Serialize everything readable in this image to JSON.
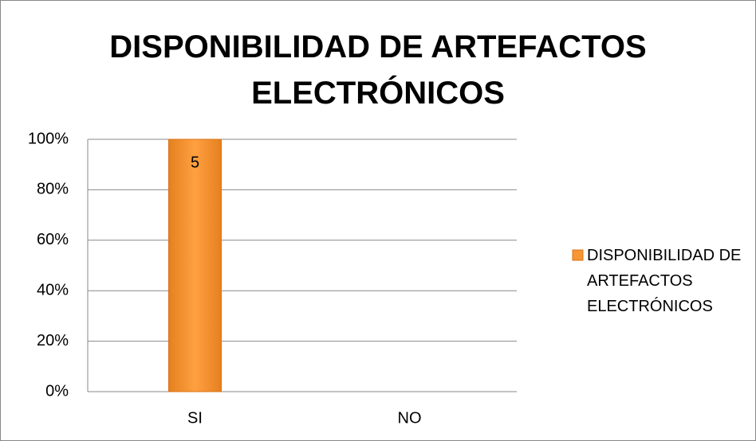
{
  "chart_data": {
    "type": "bar",
    "stacking": "percent",
    "title": "DISPONIBILIDAD DE ARTEFACTOS ELECTRÓNICOS",
    "categories": [
      "SI",
      "NO"
    ],
    "series": [
      {
        "name": "DISPONIBILIDAD DE ARTEFACTOS ELECTRÓNICOS",
        "color": "#f79633",
        "values": [
          5,
          null
        ]
      }
    ],
    "ylim": [
      0,
      100
    ],
    "yticks": [
      {
        "value": 0,
        "label": "0%"
      },
      {
        "value": 20,
        "label": "20%"
      },
      {
        "value": 40,
        "label": "40%"
      },
      {
        "value": 60,
        "label": "60%"
      },
      {
        "value": 80,
        "label": "80%"
      },
      {
        "value": 100,
        "label": "100%"
      }
    ],
    "grid": true,
    "legend": "right",
    "data_labels": true
  }
}
